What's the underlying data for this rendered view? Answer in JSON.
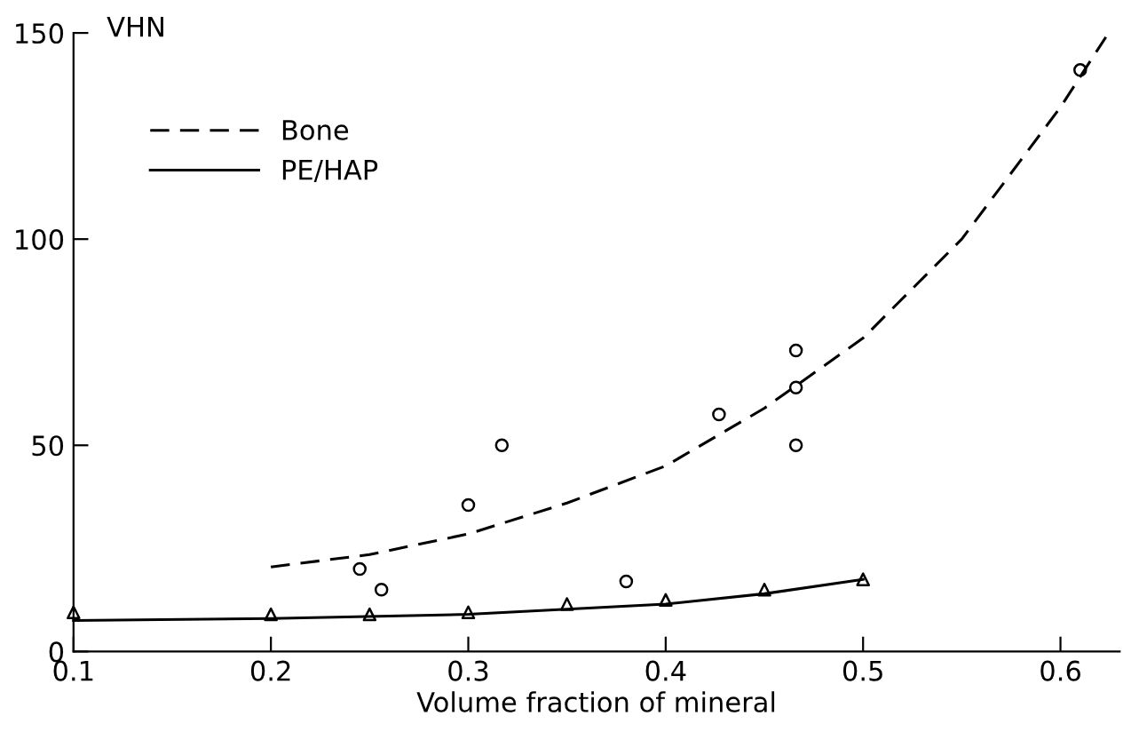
{
  "chart_data": {
    "type": "line",
    "xlabel": "Volume fraction of mineral",
    "ylabel": "VHN",
    "xlim": [
      0.1,
      0.63
    ],
    "ylim": [
      0,
      150
    ],
    "xticks": [
      0.1,
      0.2,
      0.3,
      0.4,
      0.5,
      0.6
    ],
    "yticks": [
      0,
      50,
      100,
      150
    ],
    "grid": false,
    "legend": "top left",
    "series": [
      {
        "name": "Bone",
        "line_style": "dashed",
        "marker": "none",
        "color": "#000000",
        "x": [
          0.2,
          0.25,
          0.3,
          0.35,
          0.4,
          0.45,
          0.5,
          0.55,
          0.6,
          0.623
        ],
        "values": [
          20.5,
          23.5,
          28.5,
          36,
          45,
          59,
          76,
          100,
          132,
          149
        ]
      },
      {
        "type": "scatter",
        "marker": "circle",
        "color": "#000000",
        "x": [
          0.245,
          0.256,
          0.3,
          0.317,
          0.38,
          0.427,
          0.466,
          0.466,
          0.466,
          0.61
        ],
        "values": [
          20,
          15,
          35.5,
          50,
          17,
          57.5,
          73,
          64,
          50,
          141
        ]
      },
      {
        "name": "PE/HAP",
        "line_style": "solid",
        "marker": "none",
        "color": "#000000",
        "x": [
          0.1,
          0.2,
          0.3,
          0.4,
          0.45,
          0.5
        ],
        "values": [
          7.5,
          8,
          9,
          11.5,
          14,
          17.5
        ]
      },
      {
        "type": "scatter",
        "marker": "triangle",
        "color": "#000000",
        "x": [
          0.1,
          0.2,
          0.25,
          0.3,
          0.35,
          0.4,
          0.45,
          0.5
        ],
        "values": [
          9.5,
          9,
          9,
          9.5,
          11.5,
          12.5,
          15,
          17.5
        ]
      }
    ]
  }
}
